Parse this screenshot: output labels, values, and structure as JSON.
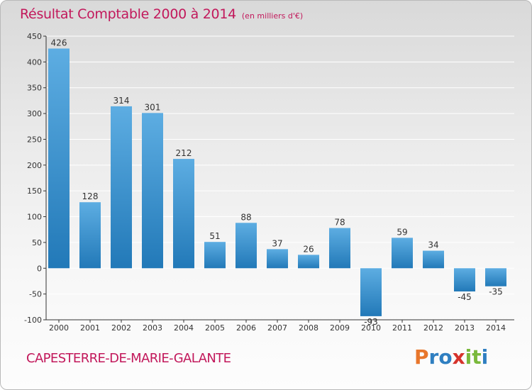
{
  "title": "Résultat Comptable 2000 à 2014",
  "unit_note": "(en milliers d'€)",
  "city": "CAPESTERRE-DE-MARIE-GALANTE",
  "logo": {
    "letters": [
      "P",
      "r",
      "o",
      "x",
      "i",
      "t",
      "i"
    ],
    "colors": [
      "#e8762b",
      "#2f7fc1",
      "#2f7fc1",
      "#d6332c",
      "#7ab93c",
      "#7ab93c",
      "#2f7fc1"
    ]
  },
  "colors": {
    "title": "#c2185b",
    "bar_light": "#5dade2",
    "bar_dark": "#2279b8",
    "grid": "#ffffff",
    "axis": "#333333"
  },
  "chart_data": {
    "type": "bar",
    "title": "Résultat Comptable 2000 à 2014",
    "subtitle": "(en milliers d'€)",
    "categories": [
      "2000",
      "2001",
      "2002",
      "2003",
      "2004",
      "2005",
      "2006",
      "2007",
      "2008",
      "2009",
      "2010",
      "2011",
      "2012",
      "2013",
      "2014"
    ],
    "values": [
      426,
      128,
      314,
      301,
      212,
      51,
      88,
      37,
      26,
      78,
      -93,
      59,
      34,
      -45,
      -35
    ],
    "ylim": [
      -100,
      450
    ],
    "yticks": [
      -100,
      -50,
      0,
      50,
      100,
      150,
      200,
      250,
      300,
      350,
      400,
      450
    ],
    "grid": true,
    "xlabel": "",
    "ylabel": ""
  }
}
